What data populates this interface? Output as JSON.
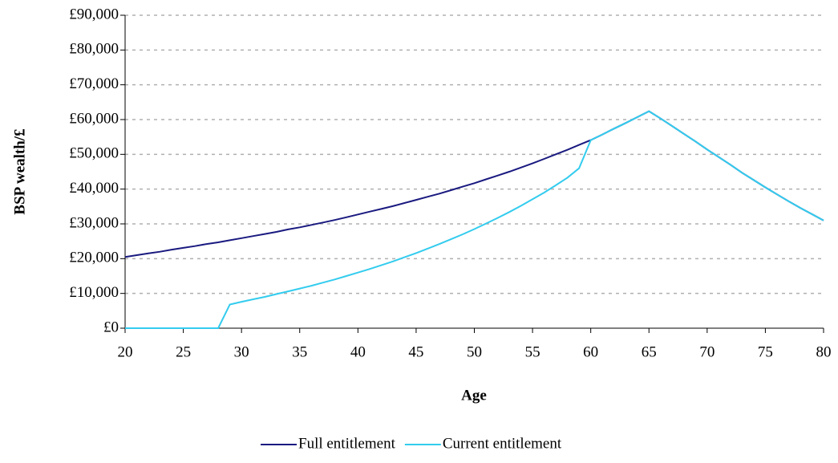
{
  "chart_data": {
    "type": "line",
    "x_label": "Age",
    "y_label": "BSP wealth/£",
    "x": [
      20,
      21,
      22,
      23,
      24,
      25,
      26,
      27,
      28,
      29,
      30,
      31,
      32,
      33,
      34,
      35,
      36,
      37,
      38,
      39,
      40,
      41,
      42,
      43,
      44,
      45,
      46,
      47,
      48,
      49,
      50,
      51,
      52,
      53,
      54,
      55,
      56,
      57,
      58,
      59,
      60,
      61,
      62,
      63,
      64,
      65,
      66,
      67,
      68,
      69,
      70,
      71,
      72,
      73,
      74,
      75,
      76,
      77,
      78,
      79,
      80
    ],
    "series": [
      {
        "name": "Full entitlement",
        "color": "#1a1a80",
        "values": [
          20500,
          21000,
          21500,
          22000,
          22600,
          23100,
          23600,
          24200,
          24700,
          25300,
          25900,
          26500,
          27100,
          27700,
          28400,
          29000,
          29700,
          30400,
          31100,
          31900,
          32700,
          33500,
          34300,
          35100,
          36000,
          36900,
          37800,
          38700,
          39700,
          40700,
          41700,
          42800,
          43900,
          45000,
          46200,
          47400,
          48700,
          50000,
          51300,
          52700,
          54100,
          55700,
          57400,
          59000,
          60700,
          62400,
          60300,
          58100,
          55900,
          53700,
          51400,
          49200,
          47000,
          44700,
          42600,
          40500,
          38500,
          36500,
          34600,
          32800,
          31000
        ]
      },
      {
        "name": "Current entitlement",
        "color": "#33ccee",
        "values": [
          0,
          0,
          0,
          0,
          0,
          0,
          0,
          0,
          0,
          6800,
          7600,
          8300,
          9000,
          9800,
          10600,
          11400,
          12200,
          13100,
          14000,
          15000,
          16000,
          17000,
          18100,
          19200,
          20400,
          21600,
          22900,
          24200,
          25600,
          27000,
          28500,
          30100,
          31700,
          33400,
          35200,
          37100,
          39000,
          41100,
          43300,
          46000,
          54100,
          55700,
          57400,
          59000,
          60700,
          62400,
          60300,
          58100,
          55900,
          53700,
          51400,
          49200,
          47000,
          44700,
          42600,
          40500,
          38500,
          36500,
          34600,
          32800,
          31000
        ]
      }
    ],
    "xlim": [
      20,
      80
    ],
    "xticks": [
      20,
      25,
      30,
      35,
      40,
      45,
      50,
      55,
      60,
      65,
      70,
      75,
      80
    ],
    "ylim": [
      0,
      90000
    ],
    "yticks": [
      {
        "value": 0,
        "label": "£0"
      },
      {
        "value": 10000,
        "label": "£10,000"
      },
      {
        "value": 20000,
        "label": "£20,000"
      },
      {
        "value": 30000,
        "label": "£30,000"
      },
      {
        "value": 40000,
        "label": "£40,000"
      },
      {
        "value": 50000,
        "label": "£50,000"
      },
      {
        "value": 60000,
        "label": "£60,000"
      },
      {
        "value": 70000,
        "label": "£70,000"
      },
      {
        "value": 80000,
        "label": "£80,000"
      },
      {
        "value": 90000,
        "label": "£90,000"
      }
    ],
    "grid": true,
    "legend": "bottom"
  }
}
